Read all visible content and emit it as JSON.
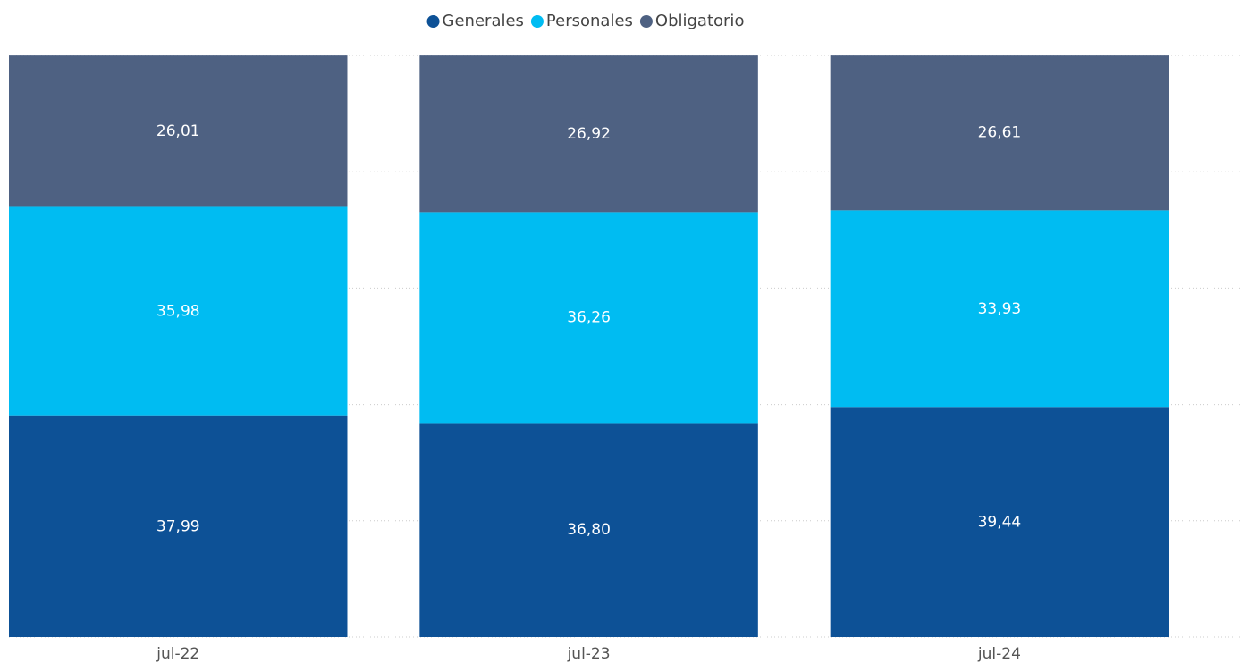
{
  "chart_data": {
    "type": "stacked_bar",
    "categories": [
      "jul-22",
      "jul-23",
      "jul-24"
    ],
    "series": [
      {
        "name": "Generales",
        "color": "#0d5196",
        "values": [
          37.99,
          36.8,
          39.44
        ],
        "value_labels": [
          "37,99",
          "36,80",
          "39,44"
        ]
      },
      {
        "name": "Personales",
        "color": "#00bcf2",
        "values": [
          35.98,
          36.26,
          33.93
        ],
        "value_labels": [
          "35,98",
          "36,26",
          "33,93"
        ]
      },
      {
        "name": "Obligatorio",
        "color": "#4e6182",
        "values": [
          26.01,
          26.92,
          26.61
        ],
        "value_labels": [
          "26,01",
          "26,92",
          "26,61"
        ]
      }
    ],
    "ylim": [
      0,
      100
    ],
    "yticks": [
      0,
      20,
      40,
      60,
      80,
      100
    ],
    "grid": true,
    "legend": "top"
  }
}
